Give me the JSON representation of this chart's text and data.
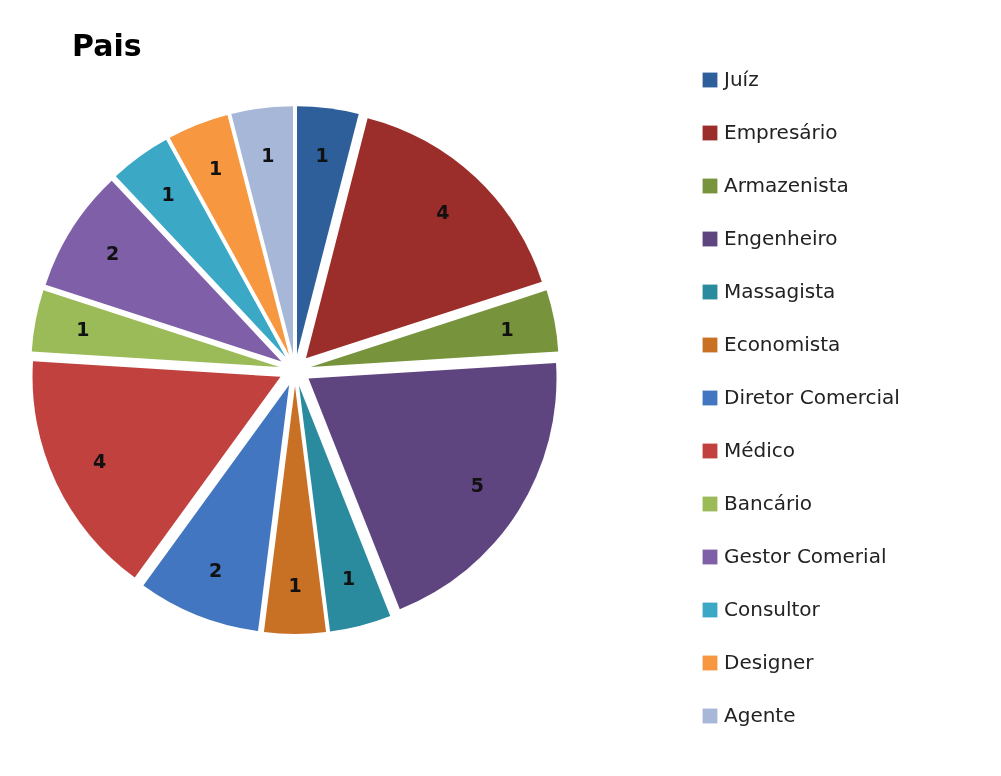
{
  "chart_data": {
    "type": "pie",
    "title": "Pais",
    "categories": [
      "Juíz",
      "Empresário",
      "Armazenista",
      "Engenheiro",
      "Massagista",
      "Economista",
      "Diretor Comercial",
      "Médico",
      "Bancário",
      "Gestor Comerial",
      "Consultor",
      "Designer",
      "Agente"
    ],
    "values": [
      1,
      4,
      1,
      5,
      1,
      1,
      2,
      4,
      1,
      2,
      1,
      1,
      1
    ],
    "colors": [
      "#2e5f9a",
      "#9b2d2b",
      "#77933c",
      "#5f4580",
      "#2a8a9e",
      "#c87125",
      "#4276c0",
      "#c0413e",
      "#9bbb59",
      "#7f5fa8",
      "#3ba8c6",
      "#f79841",
      "#a6b7d8"
    ],
    "data_labels": true,
    "legend": "right"
  }
}
